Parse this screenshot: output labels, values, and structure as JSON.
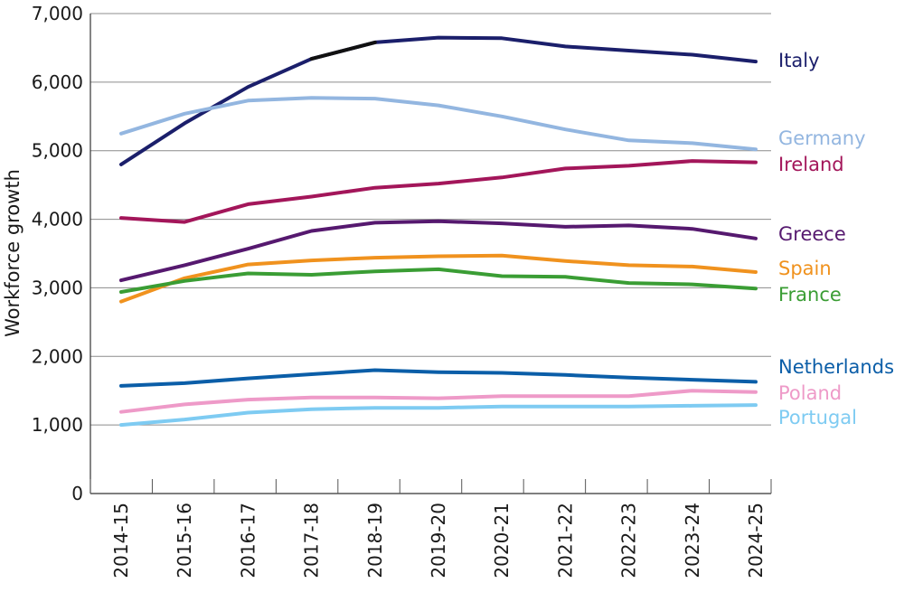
{
  "chart_data": {
    "type": "line",
    "title": "",
    "xlabel": "",
    "ylabel": "Workforce growth",
    "ylim": [
      0,
      7000
    ],
    "yticks": [
      "0",
      "1,000",
      "2,000",
      "3,000",
      "4,000",
      "5,000",
      "6,000",
      "7,000"
    ],
    "ytick_values": [
      0,
      1000,
      2000,
      3000,
      4000,
      5000,
      6000,
      7000
    ],
    "categories": [
      "2014-15",
      "2015-16",
      "2016-17",
      "2017-18",
      "2018-19",
      "2019-20",
      "2020-21",
      "2021-22",
      "2022-23",
      "2023-24",
      "2024-25"
    ],
    "grid": "horizontal",
    "legend": "direct labels at right end of lines",
    "series": [
      {
        "name": "Italy",
        "color": "#1b1f6b",
        "values": [
          4800,
          5400,
          5930,
          6340,
          6580,
          6650,
          6640,
          6520,
          6460,
          6400,
          6300
        ],
        "highlight": {
          "from": 3,
          "to": 4,
          "color": "#111111"
        }
      },
      {
        "name": "Germany",
        "color": "#93b6e0",
        "values": [
          5250,
          5540,
          5730,
          5770,
          5760,
          5660,
          5500,
          5310,
          5150,
          5110,
          5020
        ]
      },
      {
        "name": "Ireland",
        "color": "#a3165a",
        "values": [
          4020,
          3960,
          4220,
          4330,
          4460,
          4520,
          4610,
          4740,
          4780,
          4850,
          4830
        ]
      },
      {
        "name": "Greece",
        "color": "#56196f",
        "values": [
          3110,
          3330,
          3570,
          3830,
          3950,
          3970,
          3940,
          3890,
          3910,
          3860,
          3720
        ]
      },
      {
        "name": "Spain",
        "color": "#f0921e",
        "values": [
          2800,
          3140,
          3340,
          3400,
          3440,
          3460,
          3470,
          3390,
          3330,
          3310,
          3230
        ]
      },
      {
        "name": "France",
        "color": "#3a9d34",
        "values": [
          2940,
          3100,
          3210,
          3190,
          3240,
          3270,
          3170,
          3160,
          3070,
          3050,
          2990
        ]
      },
      {
        "name": "Netherlands",
        "color": "#0b5ea8",
        "values": [
          1570,
          1610,
          1680,
          1740,
          1800,
          1770,
          1760,
          1730,
          1690,
          1660,
          1630
        ]
      },
      {
        "name": "Poland",
        "color": "#ee9ac8",
        "values": [
          1190,
          1300,
          1370,
          1400,
          1400,
          1390,
          1420,
          1420,
          1420,
          1500,
          1480
        ]
      },
      {
        "name": "Portugal",
        "color": "#7ecbf2",
        "values": [
          1000,
          1080,
          1180,
          1230,
          1250,
          1250,
          1270,
          1270,
          1270,
          1280,
          1290
        ]
      }
    ]
  }
}
